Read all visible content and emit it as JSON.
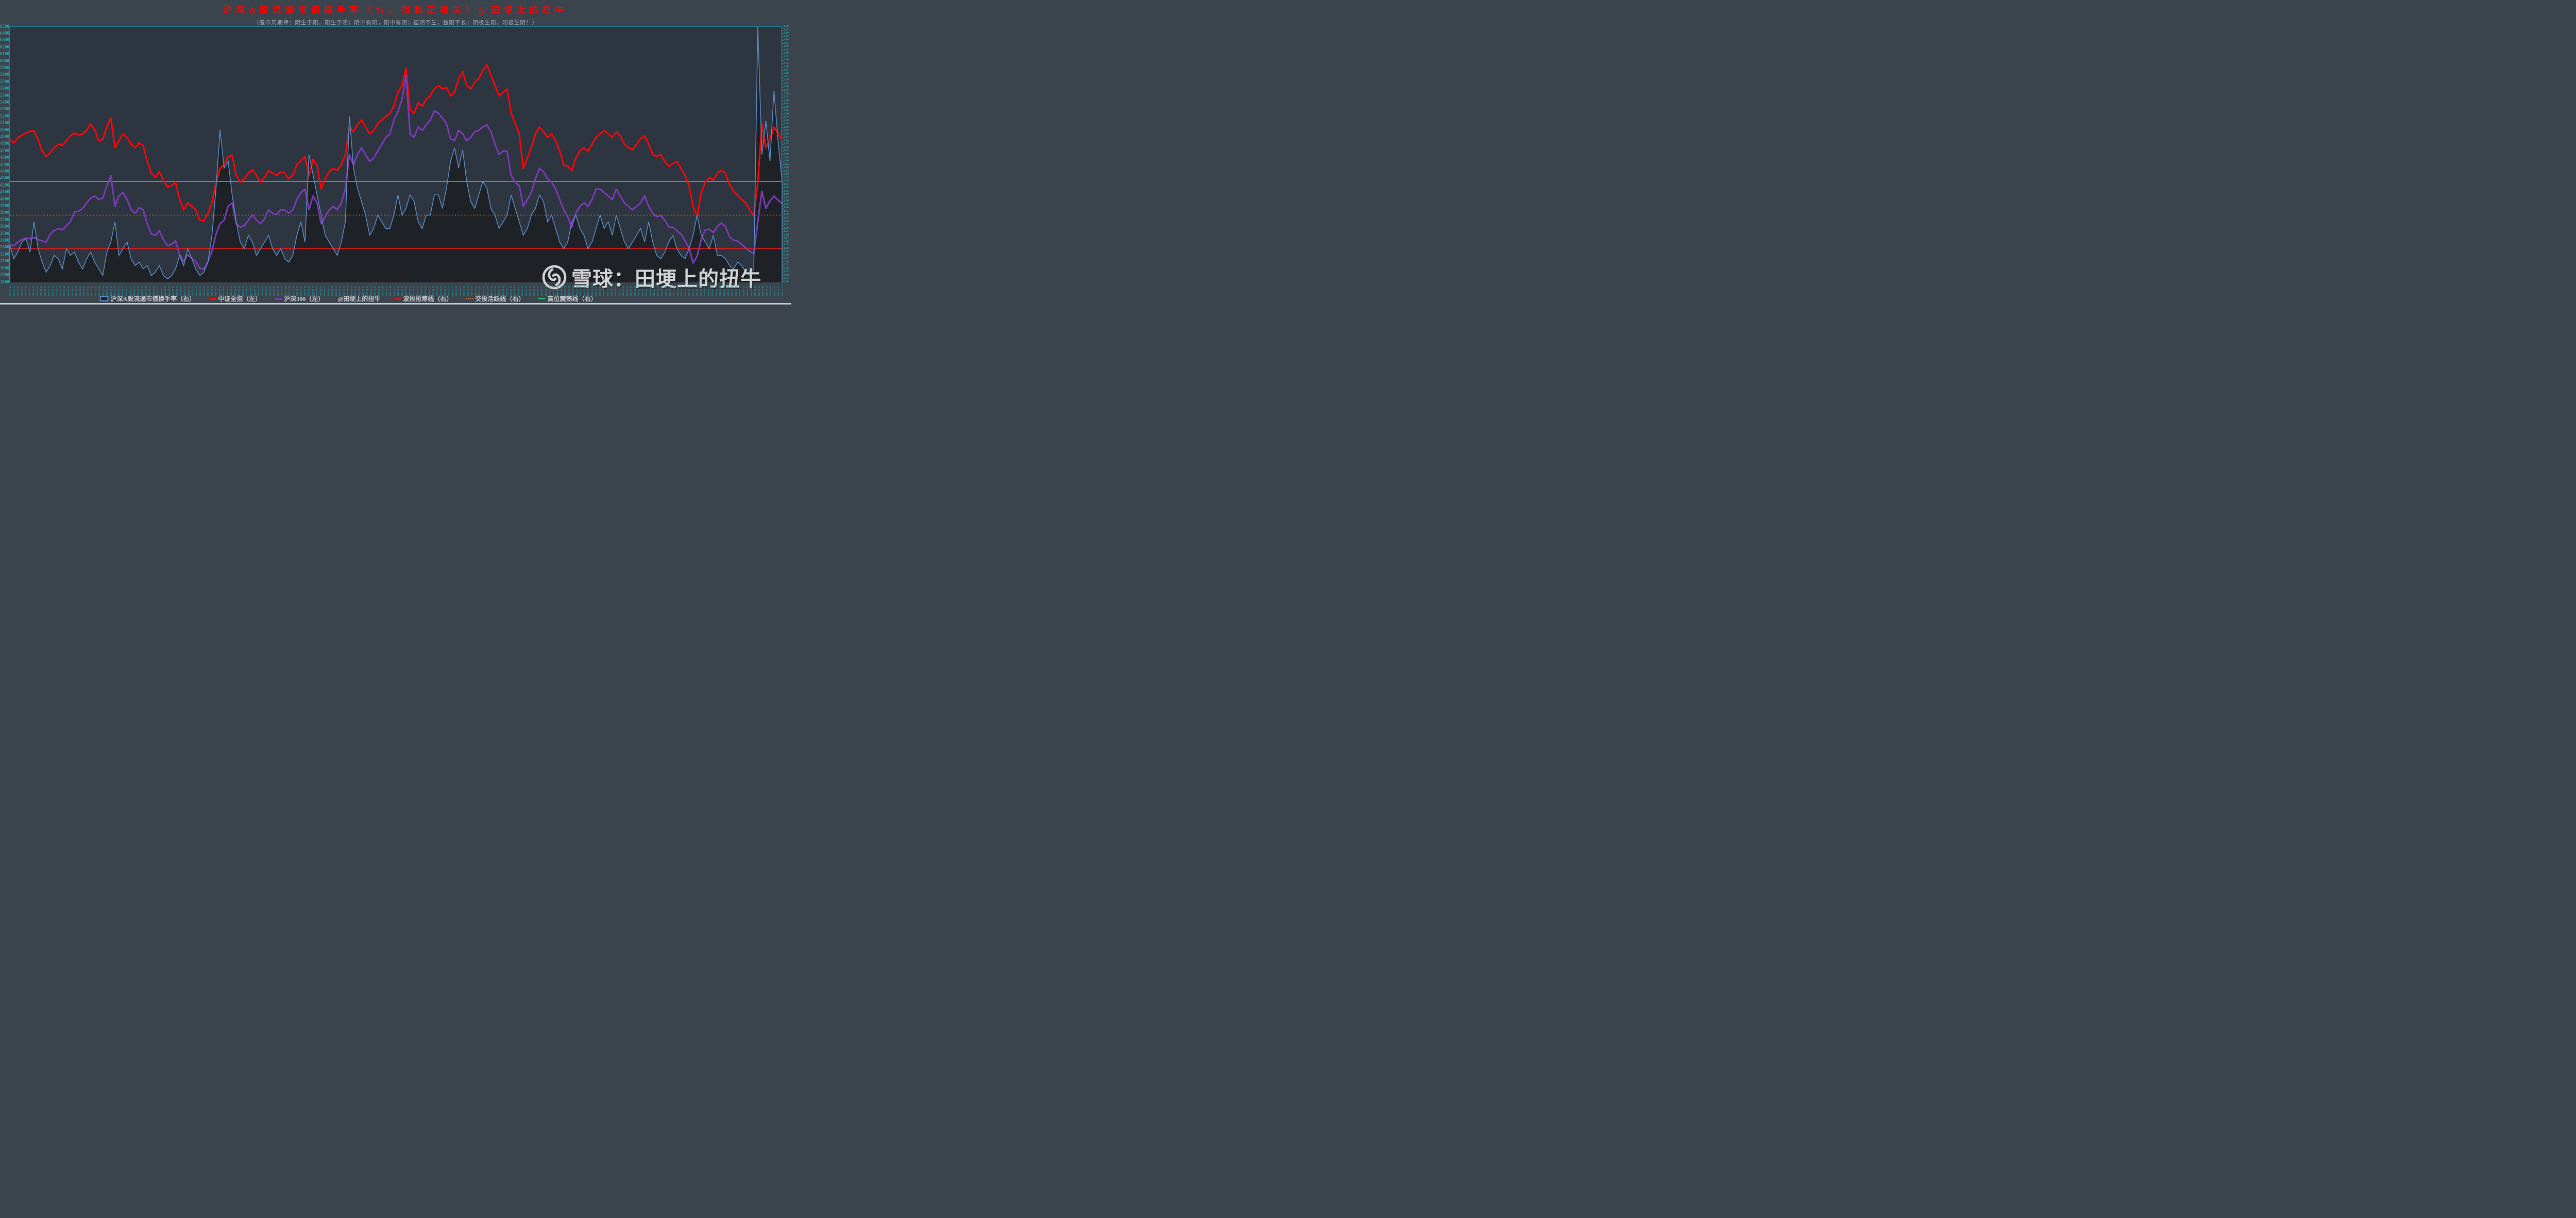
{
  "palette": {
    "background": "#3b434c",
    "plot_background": "#2d3541",
    "axis_line": "#1b7b94",
    "axis_text": "#27a0a6",
    "turnover_line": "#5d8fc9",
    "turnover_fill": "#1e2227",
    "csi_all": "#fe0404",
    "csi300": "#7c3ab7",
    "grab_line": "#ea1717",
    "active_line": "#df7e2e",
    "high_osc_line": "#2abf6b",
    "title": "#fe0000",
    "watermark": "#d3d4d5"
  },
  "watermark": {
    "icon": "xueqiu-logo",
    "text": "雪球：田埂上的扭牛"
  },
  "legend": {
    "items": [
      {
        "label": "沪深A股流通市值换手率（右）",
        "swatch": "area",
        "color": "#5d8fc9"
      },
      {
        "label": "中证全指（左）",
        "swatch": "line",
        "color": "#fe0404"
      },
      {
        "label": "沪深300（左）",
        "swatch": "line",
        "color": "#7c3ab7"
      },
      {
        "label": "@田埂上的扭牛",
        "swatch": "none",
        "color": ""
      },
      {
        "label": "波段抢筹线（右）",
        "swatch": "thin",
        "color": "#ea1717"
      },
      {
        "label": "交投活跃线（右）",
        "swatch": "dot",
        "color": "#df7e2e"
      },
      {
        "label": "高位震荡线（右）",
        "swatch": "med",
        "color": "#2abf6b"
      }
    ]
  },
  "chart_data": {
    "type": "line",
    "title": "沪深A股流通市值换手率（%，指数正相关）@田埂上的扭牛",
    "subtitle": "（股市周期律：阴生于阳，阳生于阴；阴中有阳，阳中有阴；孤阴不生，独阳不长；阴极生阳，阳极生阴！）",
    "grid": false,
    "legend_position": "bottom",
    "left_axis": {
      "min": 2800,
      "max": 6500,
      "step": 100
    },
    "right_axis": {
      "min": 0.5,
      "max": 4.3,
      "step": 0.05
    },
    "x_labels": [
      "2017-01-03",
      "2017-01-16",
      "2017-02-03",
      "2017-02-17",
      "2017-03-03",
      "2017-03-17",
      "2017-03-31",
      "2017-04-14",
      "2017-04-28",
      "2017-05-15",
      "2017-05-29",
      "2017-06-12",
      "2017-06-26",
      "2017-07-10",
      "2017-07-24",
      "2017-08-07",
      "2017-08-21",
      "2017-09-04",
      "2017-09-18",
      "2017-10-09",
      "2017-10-23",
      "2017-11-06",
      "2017-11-20",
      "2017-12-04",
      "2017-12-18",
      "2018-01-03",
      "2018-01-16",
      "2018-02-03",
      "2018-02-17",
      "2018-03-03",
      "2018-03-17",
      "2018-03-31",
      "2018-04-14",
      "2018-04-28",
      "2018-05-15",
      "2018-05-29",
      "2018-06-12",
      "2018-06-26",
      "2018-07-10",
      "2018-07-24",
      "2018-08-07",
      "2018-08-21",
      "2018-09-04",
      "2018-09-18",
      "2018-10-09",
      "2018-10-23",
      "2018-11-06",
      "2018-11-20",
      "2018-12-04",
      "2018-12-18",
      "2019-01-03",
      "2019-01-16",
      "2019-02-03",
      "2019-02-17",
      "2019-03-03",
      "2019-03-17",
      "2019-03-31",
      "2019-04-14",
      "2019-04-28",
      "2019-05-15",
      "2019-05-29",
      "2019-06-12",
      "2019-06-26",
      "2019-07-10",
      "2019-07-24",
      "2019-08-07",
      "2019-08-21",
      "2019-09-04",
      "2019-09-18",
      "2019-10-09",
      "2019-10-23",
      "2019-11-06",
      "2019-11-20",
      "2019-12-04",
      "2019-12-18",
      "2020-01-03",
      "2020-01-16",
      "2020-02-03",
      "2020-02-17",
      "2020-03-03",
      "2020-03-17",
      "2020-03-31",
      "2020-04-14",
      "2020-04-28",
      "2020-05-15",
      "2020-05-29",
      "2020-06-12",
      "2020-06-26",
      "2020-07-10",
      "2020-07-24",
      "2020-08-07",
      "2020-08-21",
      "2020-09-04",
      "2020-09-18",
      "2020-10-09",
      "2020-10-23",
      "2020-11-06",
      "2020-11-20",
      "2020-12-04",
      "2020-12-18",
      "2021-01-03",
      "2021-01-16",
      "2021-02-03",
      "2021-02-17",
      "2021-03-03",
      "2021-03-17",
      "2021-03-31",
      "2021-04-14",
      "2021-04-28",
      "2021-05-15",
      "2021-05-29",
      "2021-06-12",
      "2021-06-26",
      "2021-07-10",
      "2021-07-24",
      "2021-08-07",
      "2021-08-21",
      "2021-09-04",
      "2021-09-18",
      "2021-10-09",
      "2021-10-23",
      "2021-11-06",
      "2021-11-20",
      "2021-12-04",
      "2021-12-18",
      "2022-01-03",
      "2022-01-16",
      "2022-02-03",
      "2022-02-17",
      "2022-03-03",
      "2022-03-17",
      "2022-03-31",
      "2022-04-14",
      "2022-04-28",
      "2022-05-15",
      "2022-05-29",
      "2022-06-12",
      "2022-06-26",
      "2022-07-10",
      "2022-07-24",
      "2022-08-07",
      "2022-08-21",
      "2022-09-04",
      "2022-09-18",
      "2022-10-09",
      "2022-10-23",
      "2022-11-06",
      "2022-11-20",
      "2022-12-04",
      "2022-12-18",
      "2023-01-03",
      "2023-01-16",
      "2023-02-03",
      "2023-02-17",
      "2023-03-03",
      "2023-03-17",
      "2023-03-31",
      "2023-04-14",
      "2023-04-28",
      "2023-05-15",
      "2023-05-29",
      "2023-06-12",
      "2023-06-26",
      "2023-07-10",
      "2023-07-24",
      "2023-08-07",
      "2023-08-21",
      "2023-09-04",
      "2023-09-18",
      "2023-10-09",
      "2023-10-23",
      "2023-11-06",
      "2023-11-20",
      "2023-12-04",
      "2023-12-18",
      "2024-01-03",
      "2024-01-16",
      "2024-02-03",
      "2024-02-17",
      "2024-03-03",
      "2024-03-17",
      "2024-03-31",
      "2024-04-14",
      "2024-04-28",
      "2024-05-15",
      "2024-05-29",
      "2024-06-12",
      "2024-06-26",
      "2024-07-10",
      "2024-07-24",
      "2024-08-07",
      "2024-08-21",
      "2024-09-04",
      "2024-09-18",
      "2024-10-09",
      "2024-10-23",
      "2024-11-06",
      "2024-11-19",
      "2024-11-29",
      "2024-12-11"
    ],
    "series": [
      {
        "name": "沪深A股流通市值换手率（右）",
        "type": "area",
        "axis": "right",
        "color": "#5d8fc9",
        "fill_color": "#1e2227",
        "line_width": 1.5,
        "values": [
          1.05,
          0.85,
          0.95,
          1.1,
          1.15,
          0.95,
          1.4,
          1.0,
          0.8,
          0.65,
          0.75,
          0.9,
          0.85,
          0.7,
          1.0,
          0.9,
          0.95,
          0.8,
          0.7,
          0.85,
          0.95,
          0.8,
          0.7,
          0.6,
          0.95,
          1.1,
          1.4,
          0.9,
          1.0,
          1.1,
          0.85,
          0.75,
          0.8,
          0.7,
          0.75,
          0.6,
          0.65,
          0.75,
          0.6,
          0.55,
          0.6,
          0.7,
          0.9,
          0.75,
          1.0,
          0.85,
          0.7,
          0.6,
          0.65,
          0.8,
          1.2,
          1.9,
          2.77,
          2.2,
          2.3,
          1.8,
          1.4,
          1.1,
          1.0,
          1.2,
          1.1,
          0.9,
          1.0,
          1.1,
          1.2,
          1.0,
          0.9,
          1.0,
          0.85,
          0.8,
          0.9,
          1.2,
          1.4,
          1.1,
          2.4,
          2.1,
          1.8,
          1.5,
          1.2,
          1.1,
          1.0,
          0.9,
          1.1,
          1.4,
          2.97,
          2.2,
          1.9,
          1.7,
          1.5,
          1.2,
          1.3,
          1.5,
          1.4,
          1.3,
          1.3,
          1.5,
          1.8,
          1.5,
          1.6,
          1.8,
          1.7,
          1.4,
          1.3,
          1.5,
          1.5,
          1.8,
          1.8,
          1.6,
          1.9,
          2.3,
          2.5,
          2.2,
          2.47,
          2.0,
          1.7,
          1.6,
          1.8,
          2.0,
          1.9,
          1.6,
          1.5,
          1.3,
          1.4,
          1.5,
          1.8,
          1.6,
          1.4,
          1.2,
          1.3,
          1.5,
          1.6,
          1.8,
          1.7,
          1.4,
          1.5,
          1.3,
          1.1,
          1.0,
          1.1,
          1.4,
          1.5,
          1.3,
          1.2,
          1.0,
          1.1,
          1.3,
          1.5,
          1.3,
          1.4,
          1.2,
          1.5,
          1.3,
          1.1,
          1.0,
          1.1,
          1.2,
          1.3,
          1.1,
          1.4,
          1.1,
          0.9,
          0.85,
          0.95,
          1.1,
          1.2,
          1.0,
          0.9,
          0.85,
          1.0,
          1.2,
          1.5,
          1.2,
          1.1,
          1.0,
          1.2,
          0.9,
          0.9,
          0.85,
          0.75,
          0.7,
          0.8,
          0.75,
          0.65,
          0.6,
          0.7,
          4.3,
          2.4,
          2.9,
          2.3,
          3.35,
          2.6,
          2.0
        ]
      },
      {
        "name": "中证全指（左）",
        "type": "line",
        "axis": "left",
        "color": "#fe0404",
        "line_width": 3,
        "values": [
          4870,
          4820,
          4890,
          4930,
          4960,
          4990,
          4990,
          4870,
          4700,
          4620,
          4680,
          4750,
          4800,
          4780,
          4850,
          4920,
          4960,
          4930,
          4950,
          5000,
          5090,
          5010,
          4850,
          4870,
          5050,
          5180,
          4750,
          4850,
          4950,
          4900,
          4800,
          4750,
          4820,
          4780,
          4550,
          4380,
          4320,
          4400,
          4280,
          4180,
          4200,
          4250,
          4000,
          3850,
          3950,
          3900,
          3850,
          3700,
          3690,
          3800,
          3950,
          4250,
          4450,
          4500,
          4620,
          4640,
          4350,
          4250,
          4300,
          4380,
          4430,
          4350,
          4250,
          4320,
          4420,
          4380,
          4350,
          4400,
          4380,
          4300,
          4350,
          4500,
          4560,
          4620,
          4340,
          4580,
          4500,
          4150,
          4300,
          4400,
          4450,
          4420,
          4500,
          4650,
          5050,
          4980,
          5080,
          5150,
          5050,
          4950,
          5000,
          5100,
          5150,
          5200,
          5250,
          5350,
          5550,
          5650,
          5900,
          5300,
          5250,
          5400,
          5350,
          5450,
          5500,
          5600,
          5650,
          5600,
          5620,
          5500,
          5550,
          5750,
          5850,
          5650,
          5600,
          5700,
          5750,
          5870,
          5950,
          5800,
          5650,
          5500,
          5550,
          5600,
          5250,
          5100,
          4950,
          4450,
          4600,
          4750,
          4950,
          5050,
          4980,
          4900,
          4950,
          4850,
          4700,
          4500,
          4480,
          4420,
          4600,
          4700,
          4750,
          4700,
          4800,
          4900,
          4950,
          5000,
          4950,
          4900,
          4980,
          4920,
          4800,
          4750,
          4720,
          4800,
          4880,
          4920,
          4800,
          4650,
          4620,
          4650,
          4550,
          4480,
          4520,
          4550,
          4450,
          4350,
          4200,
          3900,
          3750,
          4100,
          4250,
          4320,
          4280,
          4380,
          4420,
          4380,
          4220,
          4120,
          4060,
          4000,
          3950,
          3850,
          3760,
          4250,
          5090,
          4750,
          4870,
          5050,
          4950,
          4870
        ]
      },
      {
        "name": "沪深300（左）",
        "type": "line",
        "axis": "left",
        "color": "#7c3ab7",
        "line_width": 3,
        "values": [
          3350,
          3330,
          3380,
          3420,
          3440,
          3430,
          3450,
          3420,
          3400,
          3380,
          3500,
          3550,
          3580,
          3560,
          3620,
          3680,
          3820,
          3830,
          3870,
          3950,
          4020,
          4050,
          4000,
          4020,
          4200,
          4344,
          3900,
          4050,
          4100,
          4000,
          3850,
          3800,
          3880,
          3850,
          3650,
          3500,
          3480,
          3550,
          3420,
          3330,
          3350,
          3400,
          3200,
          3100,
          3200,
          3150,
          3100,
          3000,
          2990,
          3100,
          3250,
          3500,
          3650,
          3700,
          3900,
          3950,
          3650,
          3600,
          3620,
          3700,
          3780,
          3700,
          3650,
          3720,
          3850,
          3800,
          3780,
          3850,
          3850,
          3800,
          3850,
          4000,
          4100,
          4150,
          3850,
          4050,
          3950,
          3650,
          3750,
          3850,
          3900,
          3850,
          3950,
          4150,
          4650,
          4500,
          4650,
          4750,
          4650,
          4550,
          4600,
          4700,
          4800,
          4900,
          4950,
          5150,
          5270,
          5450,
          5800,
          4950,
          4900,
          5050,
          5000,
          5080,
          5150,
          5280,
          5250,
          5180,
          5100,
          4880,
          4850,
          5000,
          4950,
          4850,
          4900,
          4980,
          5000,
          5050,
          5080,
          4980,
          4800,
          4650,
          4700,
          4700,
          4350,
          4250,
          4200,
          3900,
          4000,
          4100,
          4300,
          4450,
          4400,
          4300,
          4250,
          4150,
          4000,
          3850,
          3750,
          3600,
          3800,
          3900,
          3950,
          3900,
          4000,
          4150,
          4150,
          4100,
          4050,
          4000,
          4150,
          4050,
          3950,
          3900,
          3850,
          3900,
          3950,
          4050,
          3900,
          3800,
          3750,
          3770,
          3700,
          3600,
          3600,
          3550,
          3500,
          3400,
          3300,
          3080,
          3180,
          3420,
          3560,
          3570,
          3520,
          3610,
          3660,
          3610,
          3460,
          3410,
          3400,
          3350,
          3300,
          3250,
          3210,
          3680,
          4120,
          3870,
          3980,
          4050,
          3990,
          3940
        ]
      },
      {
        "name": "波段抢筹线（右）",
        "type": "hline",
        "axis": "right",
        "color": "#ea1717",
        "line_width": 1.5,
        "style": "solid",
        "value": 1.0
      },
      {
        "name": "交投活跃线（右）",
        "type": "hline",
        "axis": "right",
        "color": "#df7e2e",
        "line_width": 1.5,
        "style": "dotted",
        "value": 1.5
      },
      {
        "name": "高位震荡线（右）",
        "type": "hline",
        "axis": "right",
        "color": "#2abf6b",
        "line_width": 1.5,
        "style": "solid",
        "value": 2.0
      }
    ]
  }
}
